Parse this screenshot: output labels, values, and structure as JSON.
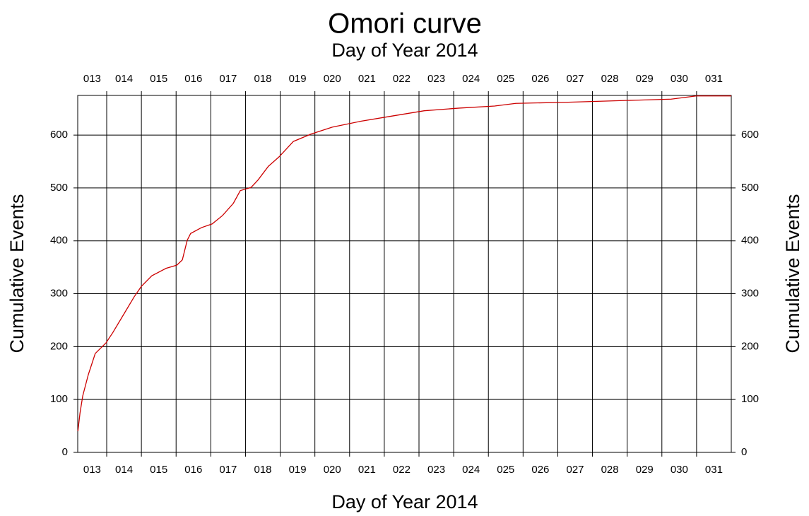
{
  "chart_data": {
    "type": "line",
    "title": "Omori curve",
    "subtitle": "Day of Year 2014",
    "xlabel": "Day of Year 2014",
    "ylabel": "Cumulative Events",
    "x": [
      13.17,
      13.23,
      13.31,
      13.47,
      13.67,
      13.98,
      14.18,
      14.49,
      14.79,
      15.0,
      15.3,
      15.71,
      16.02,
      16.18,
      16.32,
      16.42,
      16.73,
      17.04,
      17.34,
      17.65,
      17.85,
      18.16,
      18.36,
      18.66,
      18.97,
      19.38,
      19.89,
      20.5,
      21.31,
      22.13,
      23.15,
      24.16,
      25.18,
      25.79,
      27.22,
      29.25,
      30.27,
      30.99,
      32.0
    ],
    "series": [
      {
        "name": "Cumulative Events",
        "color": "#cc0000",
        "values": [
          40,
          74,
          107,
          147,
          187,
          207,
          227,
          261,
          294,
          314,
          334,
          348,
          354,
          364,
          401,
          414,
          425,
          432,
          448,
          471,
          495,
          501,
          515,
          541,
          559,
          588,
          602,
          615,
          626,
          635,
          646,
          651,
          655,
          660,
          662,
          666,
          668,
          674,
          674
        ]
      }
    ],
    "xlim": [
      13.165,
      32.0
    ],
    "xgrid": [
      14,
      15,
      16,
      17,
      18,
      19,
      20,
      21,
      22,
      23,
      24,
      25,
      26,
      27,
      28,
      29,
      30,
      31
    ],
    "xticks": [
      {
        "value": 13.58,
        "label": "013"
      },
      {
        "value": 14.5,
        "label": "014"
      },
      {
        "value": 15.5,
        "label": "015"
      },
      {
        "value": 16.5,
        "label": "016"
      },
      {
        "value": 17.5,
        "label": "017"
      },
      {
        "value": 18.5,
        "label": "018"
      },
      {
        "value": 19.5,
        "label": "019"
      },
      {
        "value": 20.5,
        "label": "020"
      },
      {
        "value": 21.5,
        "label": "021"
      },
      {
        "value": 22.5,
        "label": "022"
      },
      {
        "value": 23.5,
        "label": "023"
      },
      {
        "value": 24.5,
        "label": "024"
      },
      {
        "value": 25.5,
        "label": "025"
      },
      {
        "value": 26.5,
        "label": "026"
      },
      {
        "value": 27.5,
        "label": "027"
      },
      {
        "value": 28.5,
        "label": "028"
      },
      {
        "value": 29.5,
        "label": "029"
      },
      {
        "value": 30.5,
        "label": "030"
      },
      {
        "value": 31.5,
        "label": "031"
      }
    ],
    "ylim": [
      0,
      675
    ],
    "yticks": [
      0,
      100,
      200,
      300,
      400,
      500,
      600
    ],
    "grid": true
  }
}
